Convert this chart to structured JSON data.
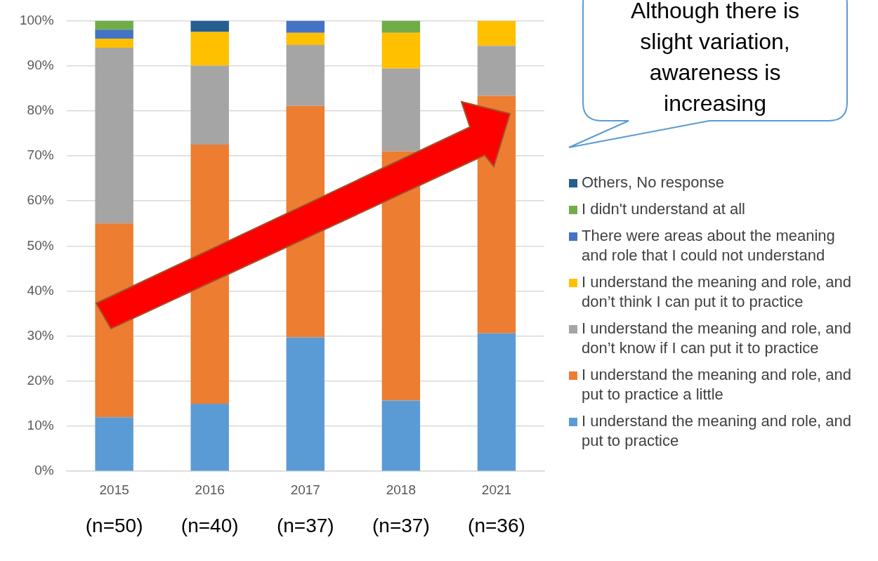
{
  "chart_data": {
    "type": "bar",
    "stacked": true,
    "categories": [
      "2015",
      "2016",
      "2017",
      "2018",
      "2021"
    ],
    "ylim": [
      0,
      100
    ],
    "yticks": [
      {
        "value": 0,
        "label": "0%"
      },
      {
        "value": 10,
        "label": "10%"
      },
      {
        "value": 20,
        "label": "20%"
      },
      {
        "value": 30,
        "label": "30%"
      },
      {
        "value": 40,
        "label": "40%"
      },
      {
        "value": 50,
        "label": "50%"
      },
      {
        "value": 60,
        "label": "60%"
      },
      {
        "value": 70,
        "label": "70%"
      },
      {
        "value": 80,
        "label": "80%"
      },
      {
        "value": 90,
        "label": "90%"
      },
      {
        "value": 100,
        "label": "100%"
      }
    ],
    "grid": "y",
    "legend": "right",
    "series": [
      {
        "name": "I understand the meaning and role, and put to practice",
        "color": "#5b9bd5",
        "values": [
          12,
          15,
          29.7,
          15.7,
          30.6
        ]
      },
      {
        "name": "I understand the meaning and role, and put to practice a little",
        "color": "#ed7d31",
        "values": [
          43,
          57.5,
          51.4,
          55.3,
          52.7
        ]
      },
      {
        "name": "I understand the meaning and role, and don’t know if I can put it to practice",
        "color": "#a5a5a5",
        "values": [
          39,
          17.5,
          13.5,
          18.4,
          11.1
        ]
      },
      {
        "name": "I understand the meaning and role, and don’t think I can put it to practice",
        "color": "#ffc000",
        "values": [
          2,
          7.5,
          2.7,
          7.9,
          5.6
        ]
      },
      {
        "name": "There were areas about the meaning and role that I could not understand",
        "color": "#4472c4",
        "values": [
          2,
          0,
          2.7,
          0,
          0
        ]
      },
      {
        "name": "I didn't understand at all",
        "color": "#70ad47",
        "values": [
          2,
          0,
          0,
          2.7,
          0
        ]
      },
      {
        "name": "Others, No response",
        "color": "#255e91",
        "values": [
          0,
          2.5,
          0,
          0,
          0
        ]
      }
    ],
    "annotations": [
      "Although there is slight variation, awareness is increasing",
      "(n=50)",
      "(n=40)",
      "(n=37)",
      "(n=37)",
      "(n=36)"
    ]
  }
}
